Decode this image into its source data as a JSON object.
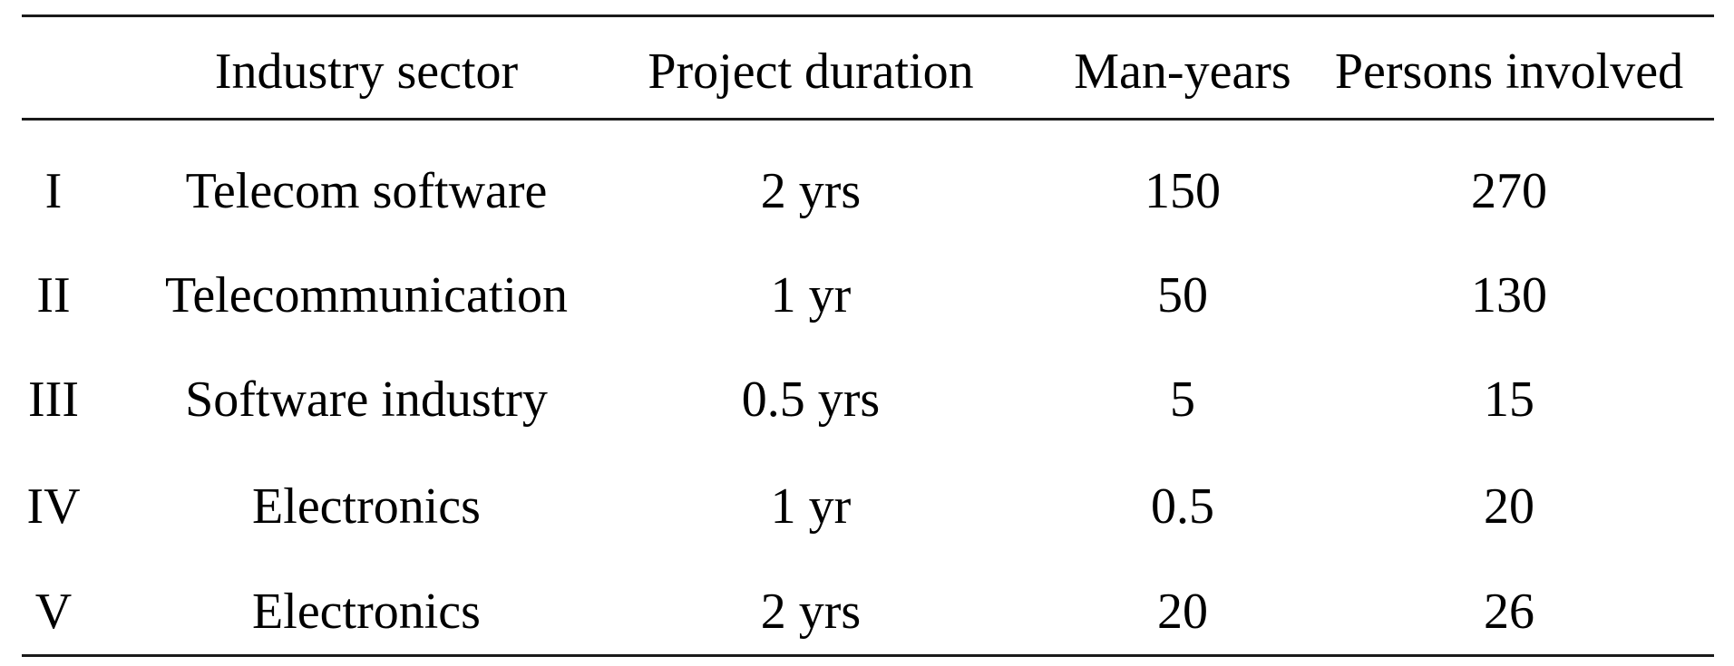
{
  "table": {
    "headers": [
      "",
      "Industry sector",
      "Project duration",
      "Man-years",
      "Persons involved"
    ],
    "rows": [
      [
        "I",
        "Telecom software",
        "2 yrs",
        "150",
        "270"
      ],
      [
        "II",
        "Telecommunication",
        "1 yr",
        "50",
        "130"
      ],
      [
        "III",
        "Software industry",
        "0.5 yrs",
        "5",
        "15"
      ],
      [
        "IV",
        "Electronics",
        "1 yr",
        "0.5",
        "20"
      ],
      [
        "V",
        "Electronics",
        "2 yrs",
        "20",
        "26"
      ]
    ]
  }
}
